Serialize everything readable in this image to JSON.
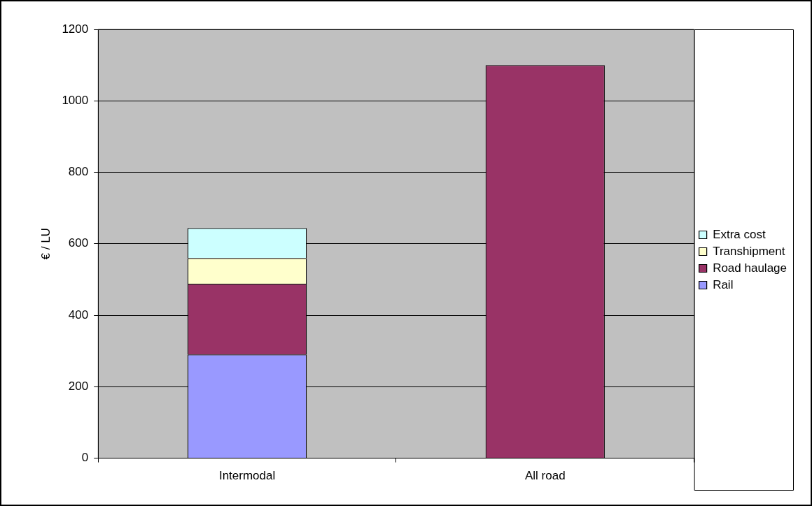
{
  "chart_data": {
    "type": "bar",
    "stacked": true,
    "ylabel": "€ / LU",
    "categories": [
      "Intermodal",
      "All road"
    ],
    "series": [
      {
        "name": "Rail",
        "color": "#9999ff",
        "values": [
          290,
          null
        ]
      },
      {
        "name": "Road haulage",
        "color": "#993366",
        "values": [
          198,
          1100
        ]
      },
      {
        "name": "Transhipment",
        "color": "#ffffcc",
        "values": [
          72,
          null
        ]
      },
      {
        "name": "Extra cost",
        "color": "#ccffff",
        "values": [
          84,
          null
        ]
      }
    ],
    "ylim": [
      0,
      1200
    ],
    "yticks": [
      0,
      200,
      400,
      600,
      800,
      1000,
      1200
    ],
    "grid": "y",
    "legend": "right"
  }
}
